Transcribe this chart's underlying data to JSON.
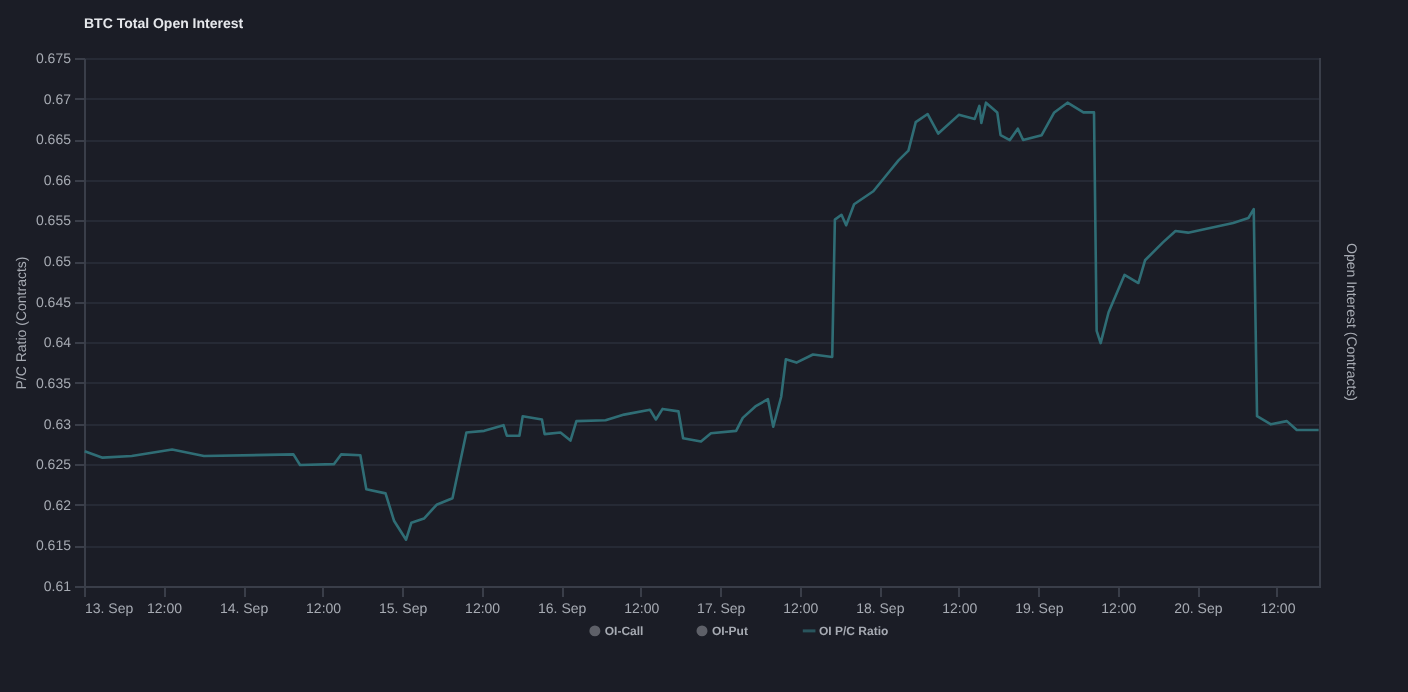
{
  "chart_data": {
    "type": "line",
    "title": "BTC Total Open Interest",
    "ylabel": "P/C Ratio (Contracts)",
    "y2label": "Open Interest (Contracts)",
    "xlim": [
      "--09-13",
      "--09-20T18:30"
    ],
    "xticks": [
      {
        "value": "--09-13",
        "label": "13. Sep"
      },
      {
        "value": "--09-13T12:00",
        "label": "12:00"
      },
      {
        "value": "--09-14",
        "label": "14. Sep"
      },
      {
        "value": "--09-14T12:00",
        "label": "12:00"
      },
      {
        "value": "--09-15",
        "label": "15. Sep"
      },
      {
        "value": "--09-15T12:00",
        "label": "12:00"
      },
      {
        "value": "--09-16",
        "label": "16. Sep"
      },
      {
        "value": "--09-16T12:00",
        "label": "12:00"
      },
      {
        "value": "--09-17",
        "label": "17. Sep"
      },
      {
        "value": "--09-17T12:00",
        "label": "12:00"
      },
      {
        "value": "--09-18",
        "label": "18. Sep"
      },
      {
        "value": "--09-18T12:00",
        "label": "12:00"
      },
      {
        "value": "--09-19",
        "label": "19. Sep"
      },
      {
        "value": "--09-19T12:00",
        "label": "12:00"
      },
      {
        "value": "--09-20",
        "label": "20. Sep"
      },
      {
        "value": "--09-20T12:00",
        "label": "12:00"
      }
    ],
    "ylim": [
      0.61,
      0.675
    ],
    "yticks": [
      0.61,
      0.615,
      0.62,
      0.625,
      0.63,
      0.635,
      0.64,
      0.645,
      0.65,
      0.655,
      0.66,
      0.665,
      0.67,
      0.675
    ],
    "grid": "y",
    "legend": "bottom",
    "marker": "none",
    "line_style": "solid",
    "series": [
      {
        "name": "OI-Call",
        "type": "area",
        "color": "#7a7d84"
      },
      {
        "name": "OI-Put",
        "type": "area",
        "color": "#7a7d84"
      },
      {
        "name": "OI P/C Ratio",
        "color": "#2f6d75",
        "x": [
          "--09-13T00:06",
          "--09-13T02:48",
          "--09-13T07:12",
          "--09-13T13:18",
          "--09-13T18:06",
          "--09-14T07:36",
          "--09-14T08:36",
          "--09-14T13:42",
          "--09-14T14:48",
          "--09-14T17:42",
          "--09-14T18:36",
          "--09-14T21:30",
          "--09-14T22:48",
          "--09-15T00:36",
          "--09-15T01:24",
          "--09-15T03:18",
          "--09-15T05:12",
          "--09-15T07:36",
          "--09-15T09:42",
          "--09-15T12:24",
          "--09-15T15:18",
          "--09-15T15:48",
          "--09-15T17:42",
          "--09-15T18:12",
          "--09-15T21:06",
          "--09-15T21:30",
          "--09-15T23:54",
          "--09-16T01:24",
          "--09-16T02:18",
          "--09-16T06:42",
          "--09-16T09:30",
          "--09-16T13:24",
          "--09-16T14:18",
          "--09-16T15:18",
          "--09-16T17:42",
          "--09-16T18:24",
          "--09-16T21:06",
          "--09-16T22:36",
          "--09-17T02:24",
          "--09-17T03:24",
          "--09-17T05:18",
          "--09-17T07:12",
          "--09-17T08:00",
          "--09-17T09:12",
          "--09-17T09:54",
          "--09-17T11:30",
          "--09-17T14:00",
          "--09-17T16:54",
          "--09-17T17:18",
          "--09-17T18:18",
          "--09-17T19:00",
          "--09-17T20:12",
          "--09-17T23:06",
          "--09-18T01:30",
          "--09-18T02:54",
          "--09-18T04:24",
          "--09-18T05:30",
          "--09-18T07:18",
          "--09-18T08:54",
          "--09-18T12:00",
          "--09-18T14:24",
          "--09-18T15:06",
          "--09-18T15:24",
          "--09-18T16:06",
          "--09-18T17:48",
          "--09-18T18:18",
          "--09-18T19:42",
          "--09-18T20:54",
          "--09-18T21:42",
          "--09-19T00:30",
          "--09-19T02:24",
          "--09-19T04:24",
          "--09-19T06:48",
          "--09-19T08:24",
          "--09-19T08:48",
          "--09-19T09:24",
          "--09-19T10:36",
          "--09-19T13:00",
          "--09-19T15:06",
          "--09-19T16:06",
          "--09-19T18:48",
          "--09-19T20:42",
          "--09-19T22:36",
          "--09-20T05:24",
          "--09-20T07:42",
          "--09-20T08:30",
          "--09-20T09:00",
          "--09-20T11:06",
          "--09-20T13:30",
          "--09-20T15:00",
          "--09-20T18:18"
        ],
        "values": [
          0.6266,
          0.6258,
          0.626,
          0.6268,
          0.626,
          0.6262,
          0.6249,
          0.625,
          0.6262,
          0.6261,
          0.6219,
          0.6214,
          0.618,
          0.6157,
          0.6178,
          0.6183,
          0.62,
          0.6208,
          0.6289,
          0.6291,
          0.6298,
          0.6285,
          0.6285,
          0.6309,
          0.6305,
          0.6287,
          0.6289,
          0.6279,
          0.6303,
          0.6304,
          0.6311,
          0.6317,
          0.6305,
          0.6318,
          0.6315,
          0.6282,
          0.6278,
          0.6288,
          0.6291,
          0.6307,
          0.6321,
          0.633,
          0.6296,
          0.6333,
          0.6379,
          0.6375,
          0.6385,
          0.6382,
          0.6551,
          0.6557,
          0.6544,
          0.657,
          0.6586,
          0.661,
          0.6624,
          0.6636,
          0.6671,
          0.6681,
          0.6657,
          0.668,
          0.6675,
          0.6691,
          0.667,
          0.6695,
          0.6683,
          0.6655,
          0.6649,
          0.6663,
          0.6649,
          0.6655,
          0.6683,
          0.6695,
          0.6683,
          0.6683,
          0.6414,
          0.6399,
          0.6437,
          0.6483,
          0.6473,
          0.6501,
          0.6523,
          0.6537,
          0.6535,
          0.6547,
          0.6553,
          0.6564,
          0.6309,
          0.6299,
          0.6303,
          0.6292,
          0.6292
        ]
      }
    ]
  }
}
